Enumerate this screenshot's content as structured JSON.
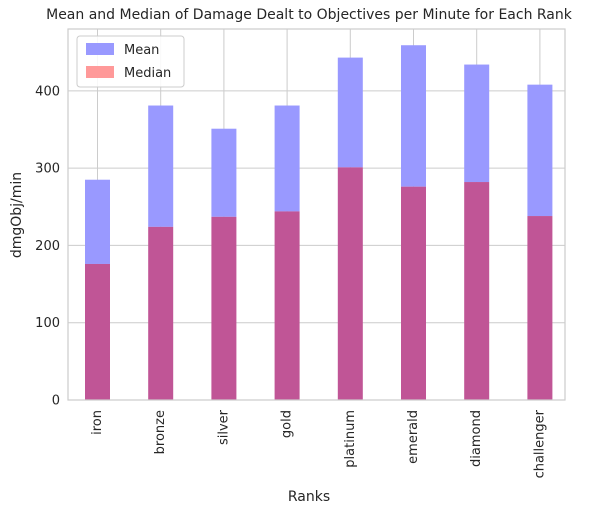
{
  "chart_data": {
    "type": "bar",
    "title": "Mean and Median of Damage Dealt to Objectives per Minute for Each Rank",
    "xlabel": "Ranks",
    "ylabel": "dmgObj/min",
    "categories": [
      "iron",
      "bronze",
      "silver",
      "gold",
      "platinum",
      "emerald",
      "diamond",
      "challenger"
    ],
    "series": [
      {
        "name": "Mean",
        "color": "#9999ff",
        "values": [
          285,
          381,
          351,
          381,
          443,
          459,
          434,
          408
        ]
      },
      {
        "name": "Median",
        "color": "#ff9999",
        "values": [
          176,
          224,
          237,
          244,
          301,
          276,
          282,
          238
        ]
      }
    ],
    "overlap_color": "#c05596",
    "ylim": [
      0,
      480
    ],
    "yticks": [
      0,
      100,
      200,
      300,
      400
    ],
    "grid": true,
    "legend_position": "top-left"
  }
}
